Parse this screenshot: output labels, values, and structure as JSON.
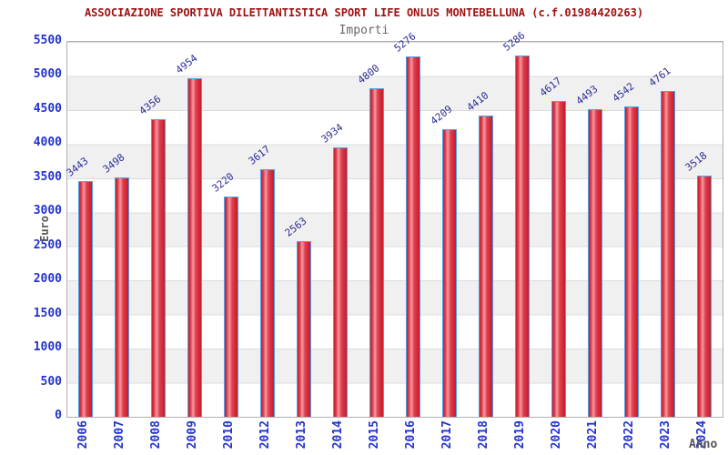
{
  "header": {
    "title": "ASSOCIAZIONE SPORTIVA DILETTANTISTICA SPORT LIFE ONLUS MONTEBELLUNA (c.f.01984420263)",
    "subtitle": "Importi"
  },
  "chart_data": {
    "type": "bar",
    "title": "ASSOCIAZIONE SPORTIVA DILETTANTISTICA SPORT LIFE ONLUS MONTEBELLUNA (c.f.01984420263)",
    "subtitle": "Importi",
    "xlabel": "Anno",
    "ylabel": "Euro",
    "categories": [
      "2006",
      "2007",
      "2008",
      "2009",
      "2010",
      "2012",
      "2013",
      "2014",
      "2015",
      "2016",
      "2017",
      "2018",
      "2019",
      "2020",
      "2021",
      "2022",
      "2023",
      "2024"
    ],
    "values": [
      3443,
      3498,
      4356,
      4954,
      3220,
      3617,
      2563,
      3934,
      4800,
      5276,
      4209,
      4410,
      5286,
      4617,
      4493,
      4542,
      4761,
      3518
    ],
    "ylim": [
      0,
      5500
    ],
    "y_ticks": [
      0,
      500,
      1000,
      1500,
      2000,
      2500,
      3000,
      3500,
      4000,
      4500,
      5000,
      5500
    ],
    "grid": "horizontal lines every 500 with alternating shaded bands",
    "legend": "none",
    "value_labels": "above bars, rotated diagonal",
    "colors": {
      "title": "#a01010",
      "subtitle": "#666666",
      "tick_label": "#2233cc",
      "value_label": "#2d2d96",
      "axis_title": "#555555",
      "bar_border": "#4aa2ec",
      "bar_dark": "#c81a28",
      "bar_mid": "#e04050",
      "bar_highlight": "#f59ba1",
      "band": "#f0f0f0",
      "grid_line": "#dcdcdc",
      "plot_border": "#b0b0b0",
      "background": "#ffffff"
    }
  }
}
